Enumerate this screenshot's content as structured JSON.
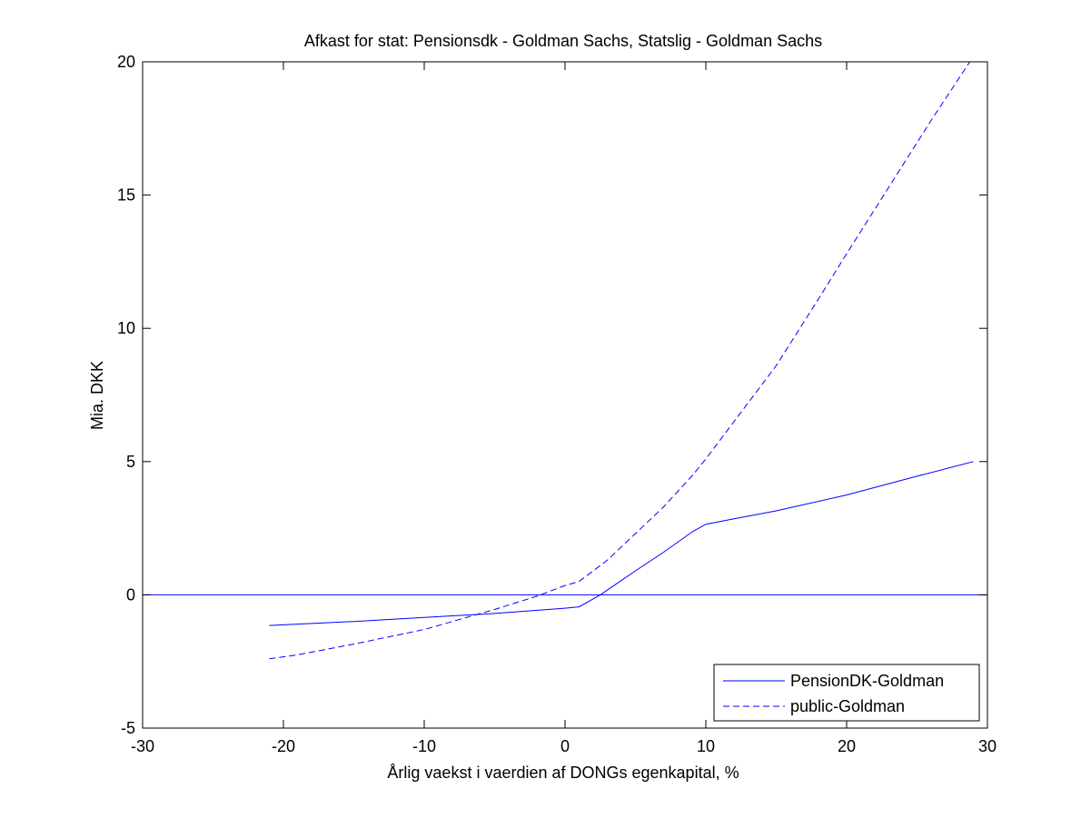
{
  "chart_data": {
    "type": "line",
    "title": "Afkast for stat: Pensionsdk - Goldman Sachs, Statslig - Goldman Sachs",
    "xlabel": "Årlig vaekst i vaerdien af DONGs egenkapital, %",
    "ylabel": "Mia. DKK",
    "xlim": [
      -30,
      30
    ],
    "ylim": [
      -5,
      20
    ],
    "xticks": [
      -30,
      -20,
      -10,
      0,
      10,
      20,
      30
    ],
    "yticks": [
      -5,
      0,
      5,
      10,
      15,
      20
    ],
    "grid": false,
    "legend_position": "bottom-right",
    "reference_line": {
      "y": 0,
      "color": "#0000ff"
    },
    "series": [
      {
        "name": "PensionDK-Goldman",
        "style": "solid",
        "color": "#0000ff",
        "x": [
          -21,
          -15,
          -10,
          -5,
          0,
          1,
          2.5,
          5,
          7,
          9,
          10,
          12,
          15,
          20,
          25,
          29
        ],
        "y": [
          -1.15,
          -1.0,
          -0.85,
          -0.7,
          -0.5,
          -0.45,
          0.0,
          0.9,
          1.6,
          2.35,
          2.65,
          2.85,
          3.15,
          3.75,
          4.45,
          5.0
        ]
      },
      {
        "name": "public-Goldman",
        "style": "dashed",
        "color": "#0000ff",
        "x": [
          -21,
          -19,
          -15,
          -10,
          -5,
          -2,
          0,
          1,
          3,
          5,
          7,
          9,
          10,
          12,
          15,
          18,
          20,
          23,
          26,
          29
        ],
        "y": [
          -2.4,
          -2.25,
          -1.85,
          -1.3,
          -0.55,
          -0.05,
          0.35,
          0.5,
          1.3,
          2.3,
          3.3,
          4.45,
          5.1,
          6.5,
          8.6,
          11.1,
          12.8,
          15.3,
          17.8,
          20.2
        ]
      }
    ]
  }
}
